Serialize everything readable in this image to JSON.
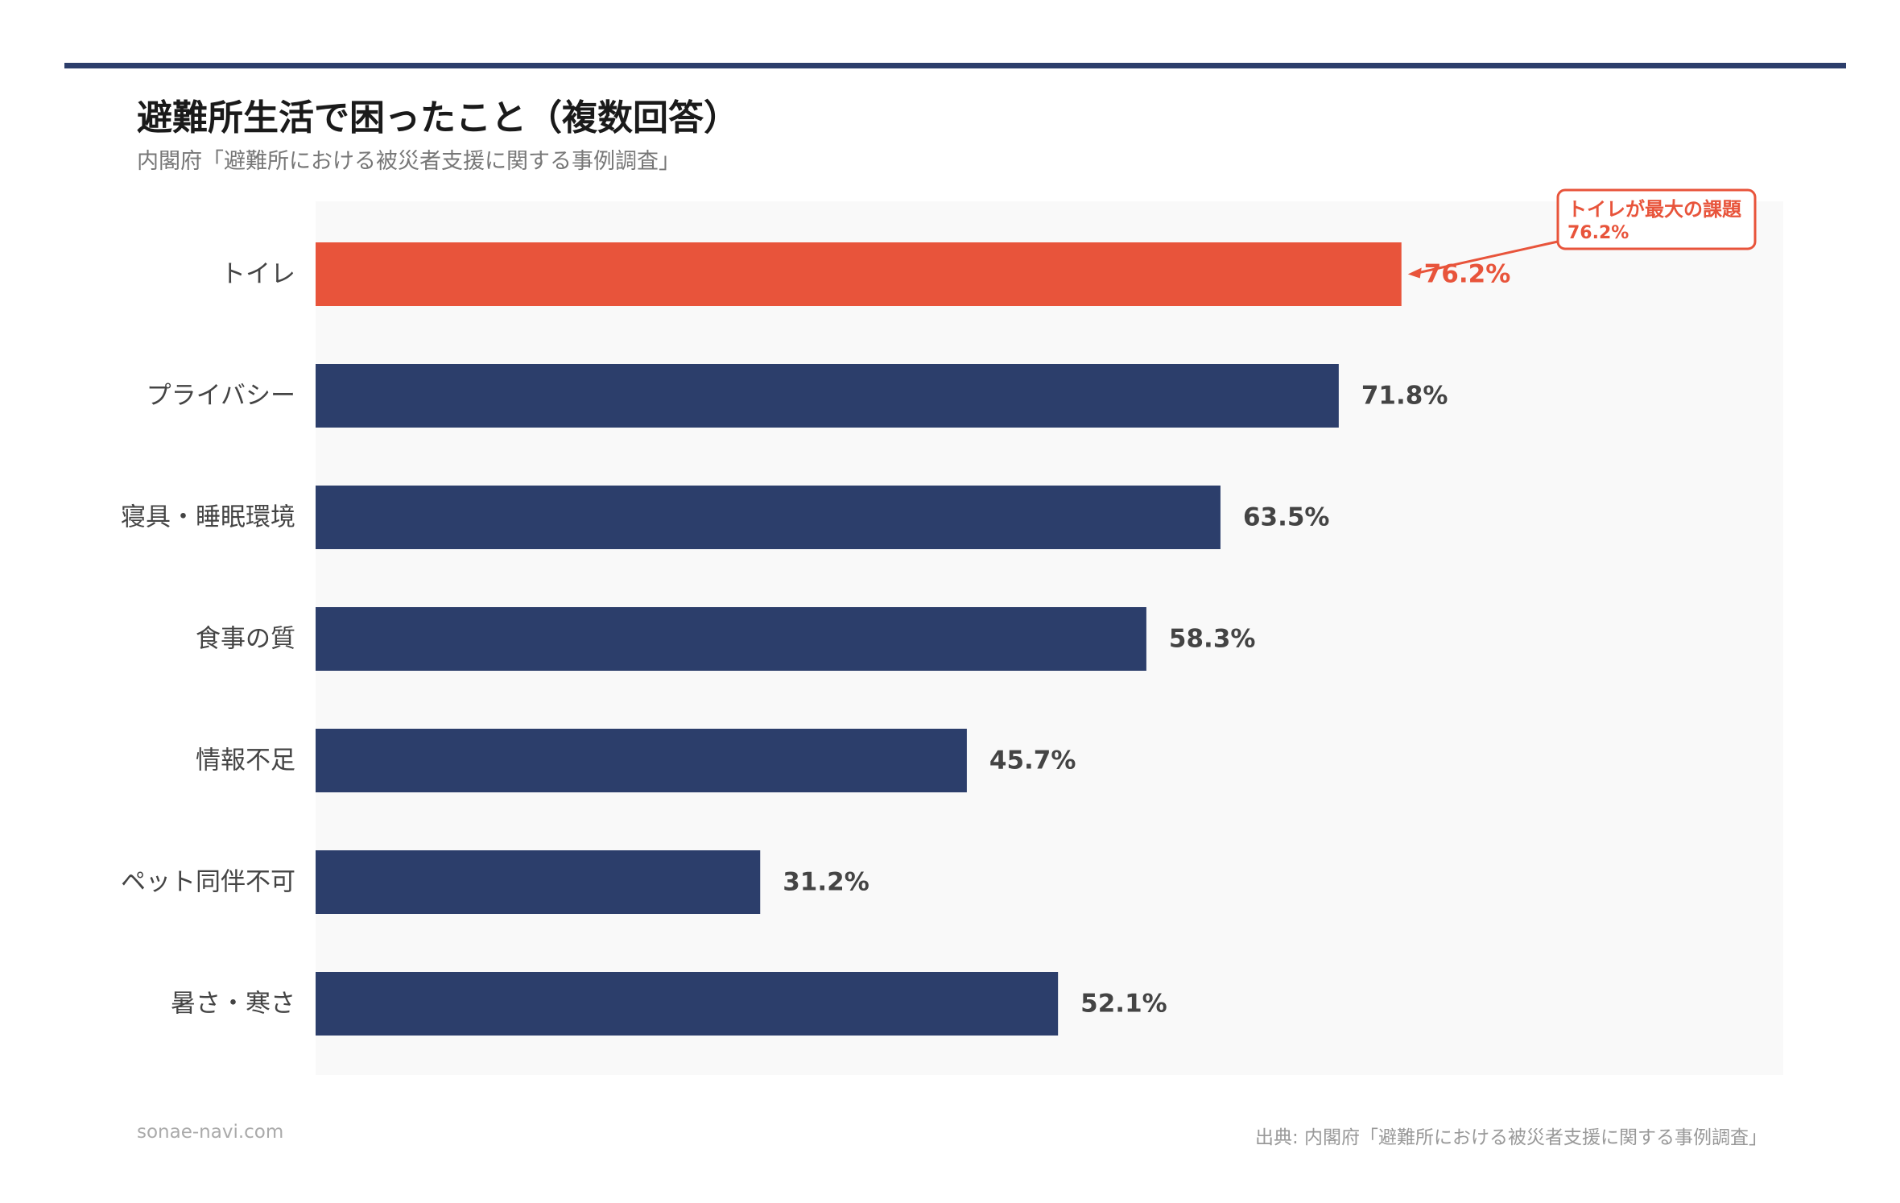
{
  "chart_data": {
    "type": "bar",
    "orientation": "horizontal",
    "title": "避難所生活で困ったこと（複数回答）",
    "subtitle": "内閣府「避難所における被災者支援に関する事例調査」",
    "categories": [
      "トイレ",
      "プライバシー",
      "寝具・睡眠環境",
      "食事の質",
      "情報不足",
      "ペット同伴不可",
      "暑さ・寒さ"
    ],
    "values": [
      76.2,
      71.8,
      63.5,
      58.3,
      45.7,
      31.2,
      52.1
    ],
    "value_labels": [
      "76.2%",
      "71.8%",
      "63.5%",
      "58.3%",
      "45.7%",
      "31.2%",
      "52.1%"
    ],
    "unit": "%",
    "xlim": [
      0,
      100
    ],
    "grid": false,
    "legend": "none",
    "highlight_index": 0,
    "colors": {
      "bar": "#2c3e6b",
      "highlight": "#e8543b",
      "plot_background": "#f9f9f9",
      "rule": "#2c3e6b"
    },
    "annotation": {
      "title": "トイレが最大の課題",
      "value": "76.2%",
      "target_index": 0
    }
  },
  "footer": {
    "site": "sonae-navi.com",
    "source": "出典: 内閣府「避難所における被災者支援に関する事例調査」"
  }
}
